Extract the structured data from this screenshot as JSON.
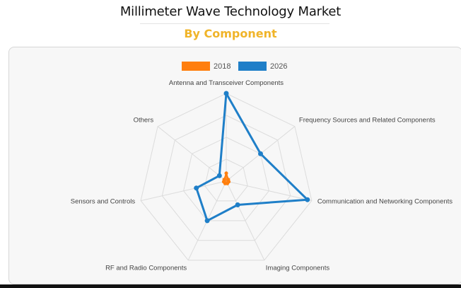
{
  "header": {
    "title": "Millimeter Wave Technology Market",
    "subtitle": "By Component"
  },
  "chart_data": {
    "type": "radar",
    "categories": [
      "Antenna and Transceiver Components",
      "Frequency Sources and Related Components",
      "Communication and Networking Components",
      "Imaging Components",
      "RF and Radio Components",
      "Sensors and Controls",
      "Others"
    ],
    "series": [
      {
        "name": "2018",
        "color": "#ff7f0e",
        "values": [
          0.09,
          0.03,
          0.03,
          0.03,
          0.03,
          0.03,
          0.03
        ]
      },
      {
        "name": "2026",
        "color": "#1f7fc8",
        "values": [
          1.0,
          0.5,
          0.95,
          0.3,
          0.5,
          0.35,
          0.1
        ]
      }
    ],
    "rlim": [
      0,
      1
    ],
    "grid": true,
    "legend_position": "top-center"
  }
}
